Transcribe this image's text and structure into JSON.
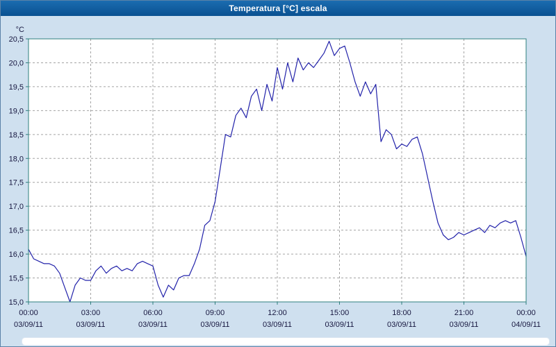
{
  "window": {
    "title": "Temperatura [°C] escala"
  },
  "colors": {
    "background": "#cfe0ef",
    "titlebar": "#0d5a9e",
    "titlebar_text": "#ffffff",
    "plot_bg": "#ffffff",
    "plot_border": "#2e7f7e",
    "grid": "#a3a3a3",
    "line": "#2222aa",
    "axis_text": "#16163f"
  },
  "chart_data": {
    "type": "line",
    "title": "Temperatura [°C] escala",
    "ylabel": "°C",
    "series_name": "Temperatura",
    "ylim": [
      15.0,
      20.5
    ],
    "y_tick_step": 0.5,
    "y_tick_labels": [
      "15,0",
      "15,5",
      "16,0",
      "16,5",
      "17,0",
      "17,5",
      "18,0",
      "18,5",
      "19,0",
      "19,5",
      "20,0",
      "20,5"
    ],
    "x_tick_labels": [
      "00:00",
      "03:00",
      "06:00",
      "09:00",
      "12:00",
      "15:00",
      "18:00",
      "21:00",
      "00:00"
    ],
    "x_date_labels": [
      "03/09/11",
      "03/09/11",
      "03/09/11",
      "03/09/11",
      "03/09/11",
      "03/09/11",
      "03/09/11",
      "03/09/11",
      "04/09/11"
    ],
    "x_interval_minutes": 15,
    "grid": "dashed",
    "legend": "none",
    "values": [
      16.1,
      15.9,
      15.85,
      15.8,
      15.8,
      15.75,
      15.6,
      15.3,
      15.0,
      15.35,
      15.5,
      15.45,
      15.45,
      15.65,
      15.75,
      15.6,
      15.7,
      15.75,
      15.65,
      15.7,
      15.65,
      15.8,
      15.85,
      15.8,
      15.75,
      15.35,
      15.1,
      15.35,
      15.25,
      15.5,
      15.55,
      15.55,
      15.8,
      16.1,
      16.6,
      16.7,
      17.1,
      17.8,
      18.5,
      18.45,
      18.9,
      19.05,
      18.85,
      19.3,
      19.45,
      19.0,
      19.55,
      19.2,
      19.9,
      19.45,
      20.0,
      19.6,
      20.1,
      19.85,
      20.0,
      19.9,
      20.05,
      20.2,
      20.45,
      20.15,
      20.3,
      20.35,
      20.0,
      19.6,
      19.3,
      19.6,
      19.35,
      19.55,
      18.35,
      18.6,
      18.5,
      18.2,
      18.3,
      18.25,
      18.4,
      18.45,
      18.1,
      17.6,
      17.1,
      16.65,
      16.4,
      16.3,
      16.35,
      16.45,
      16.4,
      16.45,
      16.5,
      16.55,
      16.45,
      16.6,
      16.55,
      16.65,
      16.7,
      16.65,
      16.7,
      16.35,
      15.95
    ]
  }
}
